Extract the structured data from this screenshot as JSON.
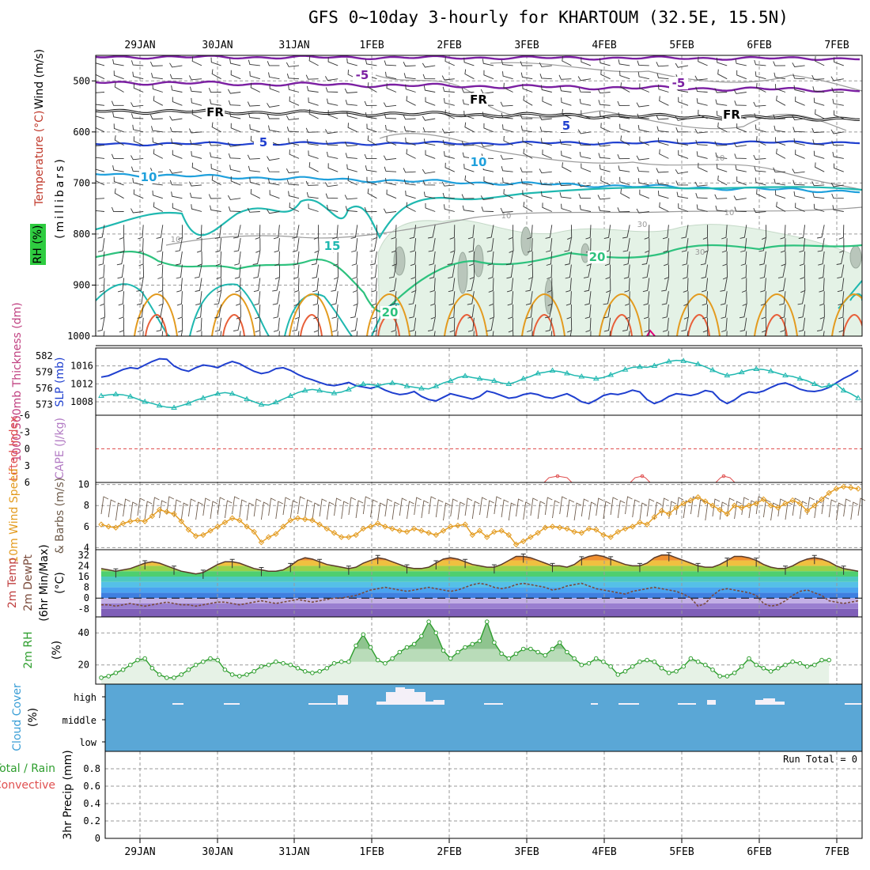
{
  "title": "GFS 0~10day 3-hourly for KHARTOUM (32.5E, 15.5N)",
  "dates": [
    "29JAN",
    "30JAN",
    "31JAN",
    "1FEB",
    "2FEB",
    "3FEB",
    "4FEB",
    "5FEB",
    "6FEB",
    "7FEB"
  ],
  "colors": {
    "purple": "#7b1fa2",
    "blue": "#1f3fcf",
    "cyan": "#1fa0dc",
    "teal": "#1fb8b0",
    "green": "#2ec27e",
    "orange": "#e39b1f",
    "red": "#e8603a",
    "grey": "#9a9a9a",
    "cloud": "#5aa7d6",
    "rh": "#2e9e2e"
  },
  "chart_data": [
    {
      "type": "line",
      "panel": "upper-air",
      "ylabels": [
        "Wind (m/s)",
        "Temperature (°C)",
        "RH (%)",
        "(millibars)"
      ],
      "yticks": [
        500,
        600,
        700,
        800,
        900,
        1000
      ],
      "ylim": [
        1000,
        450
      ],
      "temperature_contours": [
        {
          "label": "-5",
          "pressure": 505
        },
        {
          "label": "FR",
          "pressure": 560
        },
        {
          "label": "5",
          "pressure": 620
        },
        {
          "label": "10",
          "pressure": 685
        },
        {
          "label": "15",
          "pressure": 820
        },
        {
          "label": "20",
          "pressure": 860
        }
      ],
      "rh_contours": [
        "10",
        "30"
      ]
    },
    {
      "type": "line",
      "panel": "slp-thickness",
      "ylabels": [
        "1000-500mb Thickness (dm)",
        "SLP (mb)"
      ],
      "thickness_ticks": [
        573,
        576,
        579,
        582
      ],
      "slp_ticks": [
        1008,
        1012,
        1016
      ],
      "series": [
        {
          "name": "SLP (mb)",
          "values": [
            1013.5,
            1013.8,
            1014.5,
            1015.2,
            1015.6,
            1015.4,
            1016.2,
            1017.0,
            1017.6,
            1017.5,
            1016.0,
            1015.2,
            1014.8,
            1015.6,
            1016.2,
            1016.0,
            1015.6,
            1016.4,
            1017.0,
            1016.5,
            1015.6,
            1014.8,
            1014.3,
            1014.6,
            1015.4,
            1015.6,
            1015.0,
            1014.1,
            1013.4,
            1012.9,
            1012.3,
            1011.8,
            1011.6,
            1011.9,
            1012.3,
            1011.6,
            1011.3,
            1011.0,
            1011.4,
            1010.6,
            1010.0,
            1009.6,
            1009.8,
            1010.3,
            1009.2,
            1008.5,
            1008.2,
            1009.0,
            1009.8,
            1009.4,
            1009.0,
            1008.6,
            1009.2,
            1010.4,
            1010.0,
            1009.4,
            1008.8,
            1009.0,
            1009.6,
            1009.9,
            1009.6,
            1009.0,
            1008.8,
            1009.3,
            1009.8,
            1009.0,
            1008.0,
            1007.6,
            1008.4,
            1009.4,
            1009.8,
            1009.6,
            1010.0,
            1010.6,
            1010.2,
            1008.5,
            1007.6,
            1008.2,
            1009.2,
            1009.8,
            1009.6,
            1009.4,
            1009.8,
            1010.5,
            1010.2,
            1008.5,
            1007.6,
            1008.4,
            1009.6,
            1010.2,
            1010.0,
            1010.4,
            1011.2,
            1011.9,
            1012.2,
            1011.6,
            1010.8,
            1010.4,
            1010.3,
            1010.6,
            1011.2,
            1012.2,
            1013.2,
            1014.0,
            1015.0
          ]
        },
        {
          "name": "1000-500mb Thickness (dm)",
          "values": [
            574.6,
            574.8,
            574.9,
            574.8,
            574.5,
            574.0,
            573.5,
            573.2,
            572.8,
            572.5,
            572.4,
            572.8,
            573.2,
            573.8,
            574.2,
            574.6,
            575.0,
            575.2,
            575.0,
            574.5,
            574.0,
            573.5,
            573.0,
            572.9,
            573.4,
            574.0,
            574.6,
            575.2,
            575.6,
            575.8,
            575.6,
            575.3,
            575.1,
            575.3,
            575.8,
            576.4,
            576.8,
            576.7,
            576.5,
            576.8,
            577.0,
            576.8,
            576.4,
            576.2,
            576.0,
            575.9,
            576.4,
            577.0,
            577.4,
            578.0,
            578.3,
            578.0,
            577.8,
            577.6,
            577.4,
            577.0,
            576.8,
            577.2,
            577.8,
            578.2,
            578.8,
            579.0,
            579.3,
            579.1,
            578.8,
            578.4,
            578.2,
            578.0,
            577.8,
            578.0,
            578.5,
            579.0,
            579.5,
            579.9,
            580.0,
            579.9,
            580.2,
            580.6,
            581.0,
            581.2,
            581.1,
            580.8,
            580.5,
            580.0,
            579.4,
            578.8,
            578.4,
            578.6,
            579.0,
            579.4,
            579.6,
            579.5,
            579.2,
            578.8,
            578.4,
            578.2,
            577.8,
            577.4,
            576.8,
            576.2,
            576.5,
            576.8,
            575.6,
            575.0,
            574.2
          ]
        }
      ]
    },
    {
      "type": "line",
      "panel": "instability",
      "ylabels": [
        "Lifted Index",
        "CAPE (J/kg)"
      ],
      "yticks": [
        "-6",
        "-3",
        "0",
        "3",
        "6"
      ],
      "ylim": [
        6,
        -6
      ],
      "series": [
        {
          "name": "Lifted Index",
          "values": []
        }
      ]
    },
    {
      "type": "line",
      "panel": "wind-10m",
      "ylabels": [
        "10m Wind Speed",
        "& Barbs (m/s)"
      ],
      "yticks": [
        4,
        6,
        8,
        10
      ],
      "ylim": [
        3.8,
        10.2
      ],
      "series": [
        {
          "name": "10m Wind Speed",
          "values": [
            6.2,
            6.0,
            5.9,
            6.3,
            6.5,
            6.6,
            6.5,
            7.0,
            7.6,
            7.4,
            7.2,
            6.5,
            5.7,
            5.1,
            5.2,
            5.6,
            6.0,
            6.4,
            6.8,
            6.6,
            6.0,
            5.5,
            4.5,
            5.0,
            5.3,
            6.0,
            6.6,
            6.8,
            6.7,
            6.6,
            6.2,
            5.8,
            5.4,
            5.0,
            5.0,
            5.2,
            5.8,
            6.0,
            6.3,
            6.0,
            5.8,
            5.6,
            5.5,
            5.8,
            5.6,
            5.4,
            5.2,
            5.6,
            6.0,
            6.1,
            6.2,
            5.2,
            5.6,
            5.0,
            5.5,
            5.6,
            5.2,
            4.3,
            4.6,
            5.0,
            5.4,
            5.9,
            6.0,
            5.9,
            5.8,
            5.5,
            5.4,
            5.8,
            5.7,
            5.2,
            5.0,
            5.5,
            5.8,
            6.0,
            6.4,
            6.2,
            6.9,
            7.5,
            7.2,
            7.8,
            8.2,
            8.5,
            8.8,
            8.4,
            8.0,
            7.6,
            7.2,
            8.0,
            7.8,
            8.0,
            8.2,
            8.6,
            8.0,
            7.8,
            8.2,
            8.5,
            8.2,
            7.5,
            8.0,
            8.6,
            9.2,
            9.6,
            9.8,
            9.7,
            9.6
          ]
        }
      ]
    },
    {
      "type": "area",
      "panel": "temperature-2m",
      "ylabels": [
        "2m Temp",
        "2m DewPt",
        "(6hr Min/Max)",
        "(°C)"
      ],
      "yticks": [
        32,
        24,
        16,
        8,
        0,
        -8
      ],
      "ylim": [
        -14,
        36
      ],
      "series": [
        {
          "name": "2m Temp",
          "values": [
            22,
            21,
            20,
            21,
            22,
            24,
            26,
            27,
            26,
            24,
            22,
            20,
            19,
            18,
            19,
            22,
            25,
            27,
            27,
            26,
            24,
            22,
            21,
            20,
            20,
            21,
            24,
            28,
            30,
            29,
            27,
            25,
            24,
            23,
            22,
            23,
            26,
            28,
            30,
            29,
            27,
            25,
            23,
            22,
            22,
            23,
            26,
            29,
            30,
            29,
            27,
            25,
            24,
            23,
            23,
            25,
            28,
            31,
            31,
            30,
            28,
            26,
            24,
            24,
            23,
            25,
            29,
            31,
            32,
            31,
            29,
            27,
            25,
            24,
            24,
            26,
            30,
            32,
            32,
            30,
            28,
            26,
            24,
            23,
            23,
            25,
            28,
            31,
            31,
            30,
            28,
            25,
            23,
            22,
            22,
            24,
            27,
            29,
            30,
            29,
            27,
            24,
            22,
            21,
            20
          ]
        },
        {
          "name": "2m DewPt",
          "values": [
            -5,
            -5,
            -6,
            -5,
            -4,
            -5,
            -6,
            -5,
            -4,
            -3,
            -4,
            -5,
            -5,
            -6,
            -5,
            -4,
            -3,
            -3,
            -4,
            -5,
            -4,
            -3,
            -2,
            -3,
            -4,
            -3,
            -2,
            -1,
            -2,
            -3,
            -2,
            -1,
            0,
            0,
            1,
            2,
            4,
            6,
            7,
            8,
            7,
            6,
            5,
            6,
            7,
            8,
            7,
            6,
            5,
            6,
            8,
            10,
            11,
            10,
            8,
            7,
            8,
            10,
            11,
            10,
            9,
            8,
            6,
            7,
            9,
            10,
            11,
            9,
            7,
            6,
            5,
            4,
            3,
            5,
            6,
            7,
            8,
            7,
            6,
            5,
            3,
            0,
            -6,
            -4,
            2,
            6,
            7,
            6,
            5,
            4,
            2,
            -4,
            -6,
            -5,
            -2,
            2,
            5,
            6,
            4,
            2,
            -2,
            -3,
            -4,
            -3,
            -2
          ]
        }
      ]
    },
    {
      "type": "area",
      "panel": "rh-2m",
      "ylabels": [
        "2m RH",
        "(%)"
      ],
      "yticks": [
        20,
        40
      ],
      "ylim": [
        8,
        50
      ],
      "series": [
        {
          "name": "2m RH",
          "values": [
            12,
            13,
            15,
            17,
            20,
            23,
            24,
            18,
            14,
            12,
            12,
            14,
            17,
            20,
            22,
            24,
            23,
            17,
            14,
            13,
            14,
            16,
            19,
            20,
            22,
            21,
            20,
            18,
            16,
            15,
            16,
            18,
            21,
            22,
            22,
            32,
            39,
            31,
            23,
            21,
            24,
            28,
            31,
            33,
            38,
            47,
            40,
            29,
            24,
            28,
            31,
            33,
            35,
            47,
            34,
            27,
            24,
            27,
            30,
            30,
            28,
            26,
            30,
            34,
            28,
            24,
            20,
            21,
            24,
            22,
            19,
            14,
            16,
            19,
            22,
            23,
            22,
            18,
            15,
            16,
            19,
            24,
            22,
            20,
            17,
            13,
            13,
            15,
            19,
            24,
            20,
            18,
            16,
            18,
            20,
            22,
            21,
            19,
            20,
            23,
            23
          ]
        }
      ]
    },
    {
      "type": "bar",
      "panel": "cloud-cover",
      "ylabels": [
        "Cloud Cover",
        "(%)"
      ],
      "levels": [
        "high",
        "middle",
        "low"
      ]
    },
    {
      "type": "bar",
      "panel": "precip-3hr",
      "ylabels": [
        "Total / Rain",
        "Convective",
        "3hr Precip (mm)"
      ],
      "yticks": [
        0,
        0.2,
        0.4,
        0.6,
        0.8
      ],
      "ylim": [
        0,
        1.0
      ],
      "annotation": "Run Total = 0",
      "series": [
        {
          "name": "Total / Rain",
          "values": []
        }
      ]
    }
  ]
}
